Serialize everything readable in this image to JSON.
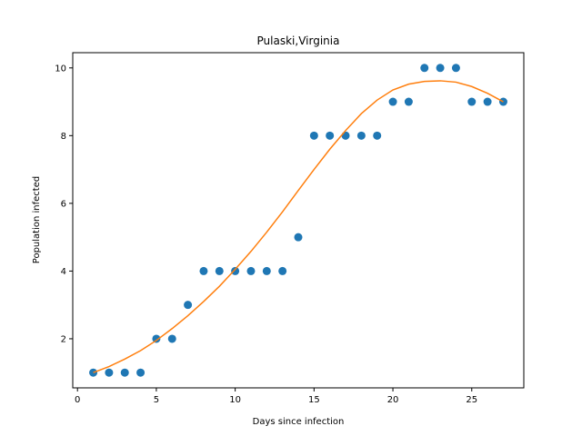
{
  "chart_data": {
    "type": "scatter",
    "title": "Pulaski,Virginia",
    "xlabel": "Days since infection",
    "ylabel": "Population infected",
    "xlim": [
      -0.3,
      28.3
    ],
    "ylim": [
      0.55,
      10.45
    ],
    "xticks": [
      0,
      5,
      10,
      15,
      20,
      25
    ],
    "yticks": [
      2,
      4,
      6,
      8,
      10
    ],
    "grid": false,
    "series": [
      {
        "kind": "scatter",
        "color": "#1f77b4",
        "x": [
          1,
          2,
          3,
          4,
          5,
          6,
          7,
          8,
          9,
          10,
          11,
          12,
          13,
          14,
          15,
          16,
          17,
          18,
          19,
          20,
          21,
          22,
          23,
          24,
          25,
          26,
          27
        ],
        "y": [
          1,
          1,
          1,
          1,
          2,
          2,
          3,
          4,
          4,
          4,
          4,
          4,
          4,
          5,
          8,
          8,
          8,
          8,
          8,
          9,
          9,
          10,
          10,
          10,
          9,
          9,
          9
        ]
      },
      {
        "kind": "line",
        "color": "#ff7f0e",
        "x": [
          1,
          2,
          3,
          4,
          5,
          6,
          7,
          8,
          9,
          10,
          11,
          12,
          13,
          14,
          15,
          16,
          17,
          18,
          19,
          20,
          21,
          22,
          23,
          24,
          25,
          26,
          27
        ],
        "y": [
          1.0,
          1.18,
          1.4,
          1.65,
          1.95,
          2.3,
          2.68,
          3.1,
          3.55,
          4.05,
          4.58,
          5.15,
          5.75,
          6.38,
          7.0,
          7.6,
          8.15,
          8.65,
          9.05,
          9.35,
          9.52,
          9.6,
          9.62,
          9.58,
          9.45,
          9.25,
          9.0
        ]
      }
    ]
  }
}
